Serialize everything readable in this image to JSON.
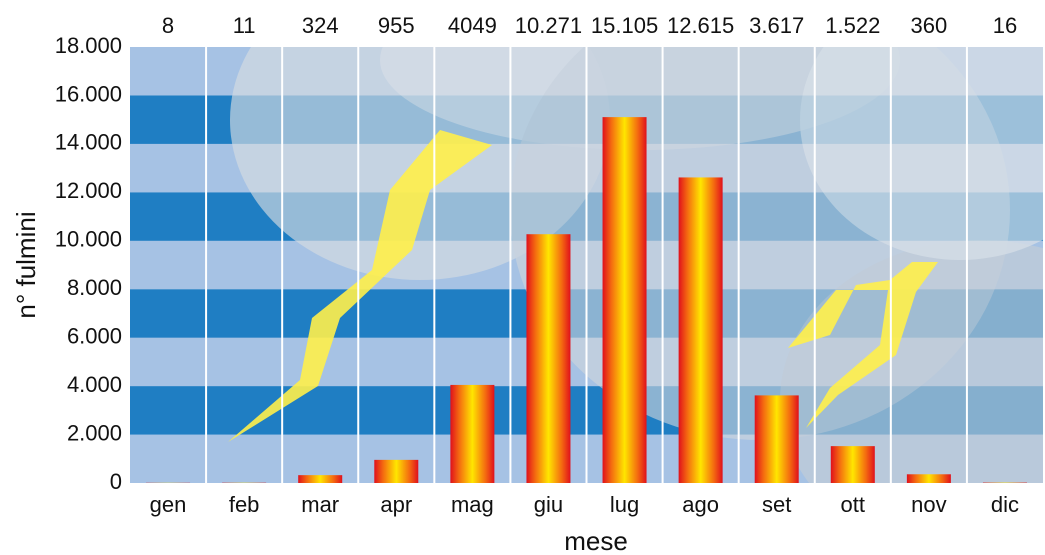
{
  "chart_data": {
    "type": "bar",
    "x_label": "mese",
    "y_label": "n° fulmini",
    "categories": [
      "gen",
      "feb",
      "mar",
      "apr",
      "mag",
      "giu",
      "lug",
      "ago",
      "set",
      "ott",
      "nov",
      "dic"
    ],
    "values": [
      8,
      11,
      324,
      955,
      4049,
      10271,
      15105,
      12615,
      3617,
      1522,
      360,
      16
    ],
    "value_labels": [
      "8",
      "11",
      "324",
      "955",
      "4049",
      "10.271",
      "15.105",
      "12.615",
      "3.617",
      "1.522",
      "360",
      "16"
    ],
    "ylim": [
      0,
      18000
    ],
    "yticks": [
      0,
      {
        "value": 2000,
        "label": "2.000"
      },
      {
        "value": 4000,
        "label": "4.000"
      },
      {
        "value": 6000,
        "label": "6.000"
      },
      {
        "value": 8000,
        "label": "8.000"
      },
      {
        "value": 10000,
        "label": "10.000"
      },
      {
        "value": 12000,
        "label": "12.000"
      },
      {
        "value": 14000,
        "label": "14.000"
      },
      {
        "value": 16000,
        "label": "16.000"
      },
      {
        "value": 18000,
        "label": "18.000"
      }
    ],
    "grid": true
  }
}
